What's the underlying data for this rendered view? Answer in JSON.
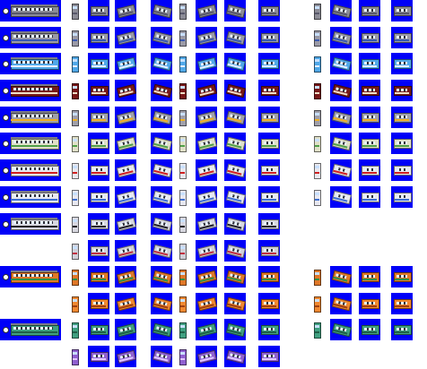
{
  "colors": {
    "background": "#0000f8",
    "page": "#ffffff"
  },
  "column_groups": [
    "side-view",
    "end-view-a",
    "isometric-a",
    "end-view-b",
    "isometric-b",
    "end-view-c",
    "isometric-c"
  ],
  "rows": [
    {
      "name": "grey-commuter-a",
      "body": "#8c8c96",
      "band": "#58586a",
      "blocks": [
        1,
        1,
        1,
        1,
        0
      ]
    },
    {
      "name": "grey-commuter-b",
      "body": "#9a9aa6",
      "band": "#3a5ab0",
      "blocks": [
        1,
        1,
        1,
        1,
        0
      ]
    },
    {
      "name": "light-blue-emu",
      "body": "#50a8e8",
      "band": "#e8f0ff",
      "blocks": [
        1,
        1,
        1,
        1,
        0
      ]
    },
    {
      "name": "maroon-express",
      "body": "#781818",
      "band": "#f0e0c8",
      "blocks": [
        1,
        1,
        1,
        0,
        1
      ]
    },
    {
      "name": "grey-commuter-c",
      "body": "#a0a0aa",
      "band": "#f0b020",
      "blocks": [
        1,
        1,
        1,
        1,
        0
      ]
    },
    {
      "name": "cream-green-emu",
      "body": "#e0e0c8",
      "band": "#50a048",
      "blocks": [
        1,
        1,
        1,
        1,
        0
      ]
    },
    {
      "name": "white-red-emu",
      "body": "#e8e8ee",
      "band": "#d02020",
      "blocks": [
        1,
        1,
        1,
        1,
        0
      ]
    },
    {
      "name": "white-blue-emu",
      "body": "#e8e8f0",
      "band": "#4070d0",
      "blocks": [
        1,
        1,
        1,
        1,
        0
      ]
    },
    {
      "name": "silver-black-emu",
      "body": "#d8d8e0",
      "band": "#202028",
      "blocks": [
        1,
        1,
        1,
        0,
        0
      ]
    },
    {
      "name": "silver-red-emu",
      "body": "#d0d0d8",
      "band": "#c03040",
      "blocks": [
        0,
        1,
        1,
        0,
        0
      ]
    },
    {
      "name": "orange-green-emu",
      "body": "#e07828",
      "band": "#309048",
      "blocks": [
        1,
        1,
        1,
        1,
        1
      ]
    },
    {
      "name": "orange-dmu",
      "body": "#f08830",
      "band": "#a04010",
      "blocks": [
        0,
        1,
        1,
        1,
        1
      ]
    },
    {
      "name": "green-teal-dmu",
      "body": "#40a080",
      "band": "#206048",
      "blocks": [
        1,
        1,
        1,
        1,
        1
      ]
    },
    {
      "name": "purple-dmu",
      "body": "#9060d0",
      "band": "#e0c8ff",
      "blocks": [
        0,
        1,
        1,
        0,
        0
      ]
    }
  ]
}
